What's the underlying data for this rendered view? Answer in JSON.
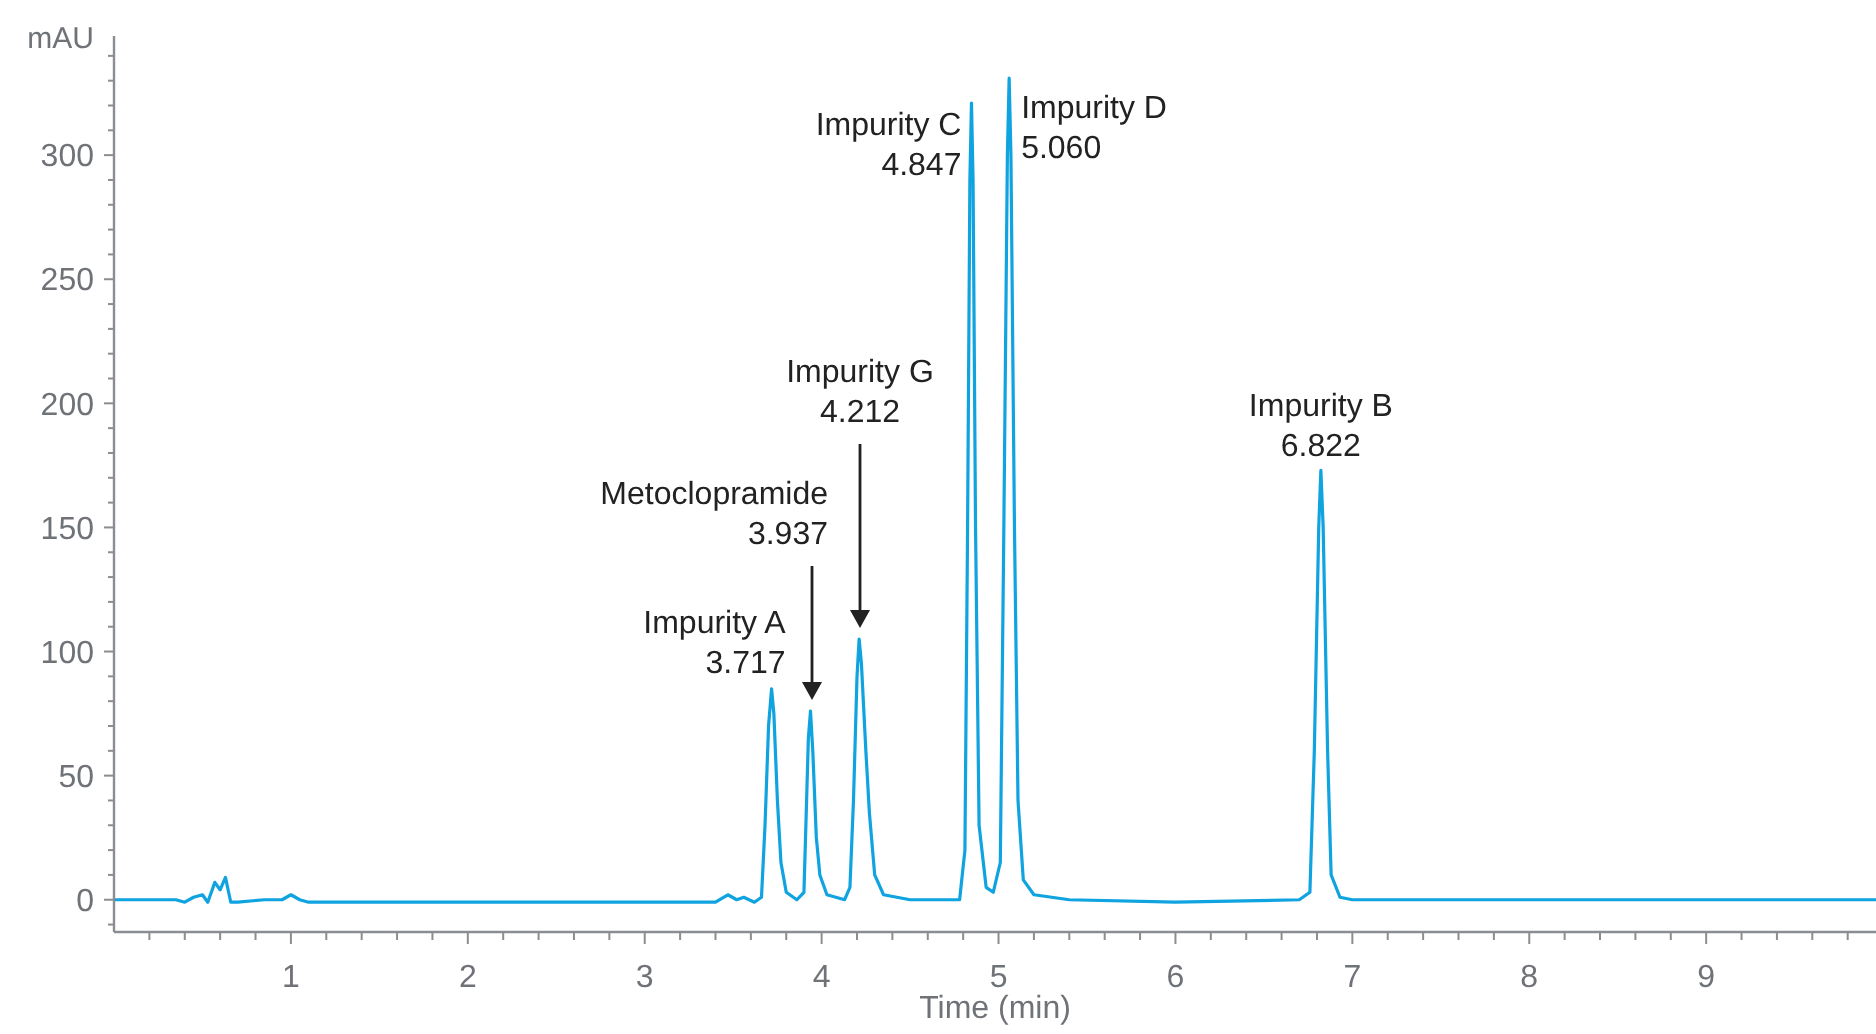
{
  "chart_data": {
    "type": "line",
    "xlabel": "Time (min)",
    "ylabel": "mAU",
    "xlim": [
      0,
      9.96
    ],
    "ylim": [
      -13,
      348
    ],
    "xticks": [
      {
        "value": 0.2,
        "label": null
      },
      {
        "value": 0.4,
        "label": null
      },
      {
        "value": 0.6,
        "label": null
      },
      {
        "value": 0.8,
        "label": null
      },
      1,
      {
        "value": 1.2,
        "label": null
      },
      {
        "value": 1.4,
        "label": null
      },
      {
        "value": 1.6,
        "label": null
      },
      {
        "value": 1.8,
        "label": null
      },
      2,
      {
        "value": 2.2,
        "label": null
      },
      {
        "value": 2.4,
        "label": null
      },
      {
        "value": 2.6,
        "label": null
      },
      {
        "value": 2.8,
        "label": null
      },
      3,
      {
        "value": 3.2,
        "label": null
      },
      {
        "value": 3.4,
        "label": null
      },
      {
        "value": 3.6,
        "label": null
      },
      {
        "value": 3.8,
        "label": null
      },
      4,
      {
        "value": 4.2,
        "label": null
      },
      {
        "value": 4.4,
        "label": null
      },
      {
        "value": 4.6,
        "label": null
      },
      {
        "value": 4.8,
        "label": null
      },
      5,
      {
        "value": 5.2,
        "label": null
      },
      {
        "value": 5.4,
        "label": null
      },
      {
        "value": 5.6,
        "label": null
      },
      {
        "value": 5.8,
        "label": null
      },
      6,
      {
        "value": 6.2,
        "label": null
      },
      {
        "value": 6.4,
        "label": null
      },
      {
        "value": 6.6,
        "label": null
      },
      {
        "value": 6.8,
        "label": null
      },
      7,
      {
        "value": 7.2,
        "label": null
      },
      {
        "value": 7.4,
        "label": null
      },
      {
        "value": 7.6,
        "label": null
      },
      {
        "value": 7.8,
        "label": null
      },
      8,
      {
        "value": 8.2,
        "label": null
      },
      {
        "value": 8.4,
        "label": null
      },
      {
        "value": 8.6,
        "label": null
      },
      {
        "value": 8.8,
        "label": null
      },
      9,
      {
        "value": 9.2,
        "label": null
      },
      {
        "value": 9.4,
        "label": null
      },
      {
        "value": 9.6,
        "label": null
      },
      {
        "value": 9.8,
        "label": null
      }
    ],
    "yticks": [
      {
        "value": -10,
        "label": null
      },
      0,
      {
        "value": 10,
        "label": null
      },
      {
        "value": 20,
        "label": null
      },
      {
        "value": 30,
        "label": null
      },
      {
        "value": 40,
        "label": null
      },
      50,
      {
        "value": 60,
        "label": null
      },
      {
        "value": 70,
        "label": null
      },
      {
        "value": 80,
        "label": null
      },
      {
        "value": 90,
        "label": null
      },
      100,
      {
        "value": 110,
        "label": null
      },
      {
        "value": 120,
        "label": null
      },
      {
        "value": 130,
        "label": null
      },
      {
        "value": 140,
        "label": null
      },
      150,
      {
        "value": 160,
        "label": null
      },
      {
        "value": 170,
        "label": null
      },
      {
        "value": 180,
        "label": null
      },
      {
        "value": 190,
        "label": null
      },
      200,
      {
        "value": 210,
        "label": null
      },
      {
        "value": 220,
        "label": null
      },
      {
        "value": 230,
        "label": null
      },
      {
        "value": 240,
        "label": null
      },
      250,
      {
        "value": 260,
        "label": null
      },
      {
        "value": 270,
        "label": null
      },
      {
        "value": 280,
        "label": null
      },
      {
        "value": 290,
        "label": null
      },
      300,
      {
        "value": 310,
        "label": null
      },
      {
        "value": 320,
        "label": null
      },
      {
        "value": 330,
        "label": null
      },
      {
        "value": 340,
        "label": null
      }
    ],
    "grid": false,
    "marker": "none",
    "line_style": "solid",
    "series": [
      {
        "color": "#0fa3e0",
        "x": [
          0,
          0.35,
          0.4,
          0.45,
          0.5,
          0.53,
          0.57,
          0.6,
          0.63,
          0.66,
          0.7,
          0.85,
          0.95,
          1.0,
          1.05,
          1.1,
          1.5,
          2,
          2.5,
          3,
          3.4,
          3.47,
          3.52,
          3.56,
          3.62,
          3.66,
          3.68,
          3.7,
          3.717,
          3.73,
          3.75,
          3.77,
          3.8,
          3.86,
          3.9,
          3.915,
          3.925,
          3.937,
          3.95,
          3.97,
          3.99,
          4.03,
          4.13,
          4.16,
          4.18,
          4.2,
          4.212,
          4.225,
          4.25,
          4.27,
          4.3,
          4.35,
          4.5,
          4.78,
          4.81,
          4.825,
          4.838,
          4.847,
          4.856,
          4.87,
          4.89,
          4.93,
          4.97,
          5.01,
          5.03,
          5.05,
          5.06,
          5.07,
          5.09,
          5.11,
          5.14,
          5.2,
          5.4,
          6,
          6.7,
          6.76,
          6.785,
          6.81,
          6.822,
          6.835,
          6.86,
          6.88,
          6.93,
          7,
          8,
          9,
          9.96
        ],
        "values": [
          0,
          0,
          -1,
          1,
          2,
          -1,
          7,
          4,
          9,
          -1,
          -1,
          0,
          0,
          2,
          0,
          -1,
          -1,
          -1,
          -1,
          -1,
          -1,
          2,
          0,
          1,
          -1,
          1,
          30,
          70,
          85,
          75,
          40,
          15,
          3,
          0,
          3,
          40,
          65,
          76,
          60,
          25,
          10,
          2,
          0,
          5,
          40,
          90,
          105,
          95,
          60,
          35,
          10,
          2,
          0,
          0,
          20,
          150,
          290,
          321,
          290,
          150,
          30,
          5,
          3,
          15,
          150,
          300,
          331,
          300,
          150,
          40,
          8,
          2,
          0,
          -1,
          0,
          3,
          60,
          150,
          173,
          150,
          60,
          10,
          1,
          0,
          0,
          0,
          0
        ]
      }
    ],
    "annotations": [
      {
        "text": "Impurity A\n3.717",
        "x": 3.717,
        "y": 85
      },
      "Metoclopramide\n3.937",
      "Impurity G\n4.212",
      {
        "text": "Impurity C\n4.847",
        "x": 4.847,
        "y": 321
      },
      {
        "text": "Impurity D\n5.060",
        "x": 5.06,
        "y": 331
      },
      {
        "text": "Impurity B\n6.822",
        "x": 6.822,
        "y": 173
      }
    ]
  }
}
